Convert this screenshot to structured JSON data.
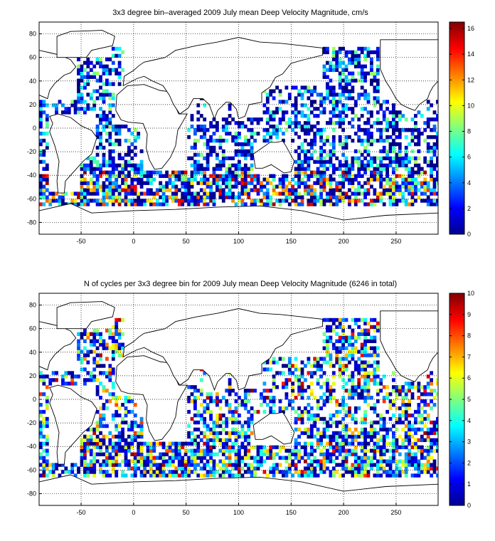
{
  "chart_data": [
    {
      "type": "heatmap",
      "title": "3x3 degree bin–averaged 2009 July mean Deep Velocity Magnitude, cm/s",
      "xlim": [
        -90,
        290
      ],
      "ylim": [
        -90,
        90
      ],
      "xticks": [
        -50,
        0,
        50,
        100,
        150,
        200,
        250
      ],
      "yticks": [
        -80,
        -60,
        -40,
        -20,
        0,
        20,
        40,
        60,
        80
      ],
      "grid": true,
      "bin_size_deg": 3,
      "colormap": "jet",
      "colorbar": {
        "min": 0,
        "max": 16.5,
        "ticks": [
          0,
          2,
          4,
          6,
          8,
          10,
          12,
          14,
          16
        ],
        "placement": "right"
      }
    },
    {
      "type": "heatmap",
      "title": "N of cycles per 3x3 degree bin for 2009 July mean Deep Velocity Magnitude (6246 in total)",
      "xlim": [
        -90,
        290
      ],
      "ylim": [
        -90,
        90
      ],
      "xticks": [
        -50,
        0,
        50,
        100,
        150,
        200,
        250
      ],
      "yticks": [
        -80,
        -60,
        -40,
        -20,
        0,
        20,
        40,
        60,
        80
      ],
      "grid": true,
      "bin_size_deg": 3,
      "colormap": "jet",
      "colorbar": {
        "min": 0,
        "max": 10,
        "ticks": [
          0,
          1,
          2,
          3,
          4,
          5,
          6,
          7,
          8,
          9,
          10
        ],
        "placement": "right"
      }
    }
  ]
}
